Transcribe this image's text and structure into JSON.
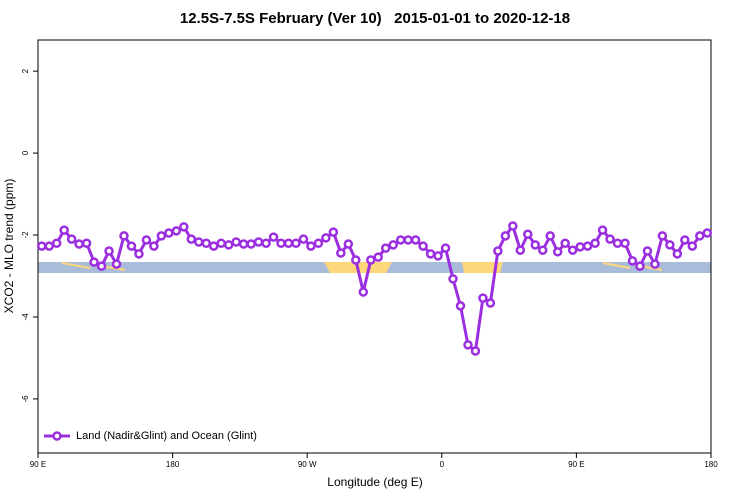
{
  "chart_data": {
    "type": "line",
    "title": "12.5S-7.5S February (Ver 10)   2015-01-01 to 2020-12-18",
    "x_label": "Longitude (deg E)",
    "y_label": "XCO2 - MLO trend (ppm)",
    "xlim": [
      90,
      540
    ],
    "ylim": [
      -7.32,
      2.76
    ],
    "xticks": [
      {
        "value": 90,
        "label": "90 E"
      },
      180,
      {
        "value": 270,
        "label": "90 W"
      },
      {
        "value": 360,
        "label": "0"
      },
      {
        "value": 450,
        "label": "90 E"
      },
      {
        "value": 540,
        "label": "180"
      }
    ],
    "yticks": [
      2,
      0,
      -2,
      -4,
      -6
    ],
    "legend": "bottom-left",
    "x": [
      92.5,
      97.5,
      102.5,
      107.5,
      112.5,
      117.5,
      122.5,
      127.5,
      132.5,
      137.5,
      142.5,
      147.5,
      152.5,
      157.5,
      162.5,
      167.5,
      172.5,
      177.5,
      182.5,
      187.5,
      192.5,
      197.5,
      202.5,
      207.5,
      212.5,
      217.5,
      222.5,
      227.5,
      232.5,
      237.5,
      242.5,
      247.5,
      252.5,
      257.5,
      262.5,
      267.5,
      272.5,
      277.5,
      282.5,
      287.5,
      292.5,
      297.5,
      302.5,
      307.5,
      312.5,
      317.5,
      322.5,
      327.5,
      332.5,
      337.5,
      342.5,
      347.5,
      352.5,
      357.5,
      362.5,
      367.5,
      372.5,
      377.5,
      382.5,
      387.5,
      392.5,
      397.5,
      402.5,
      407.5,
      412.5,
      417.5,
      422.5,
      427.5,
      432.5,
      437.5,
      442.5,
      447.5,
      452.5,
      457.5,
      462.5,
      467.5,
      472.5,
      477.5,
      482.5,
      487.5,
      492.5,
      497.5,
      502.5,
      507.5,
      512.5,
      517.5,
      522.5,
      527.5,
      532.5,
      537.5
    ],
    "series": [
      {
        "name": "Land (Nadir&Glint) and Ocean (Glint)",
        "color": "#9b2fe0",
        "values": [
          -2.27,
          -2.27,
          -2.2,
          -1.88,
          -2.1,
          -2.22,
          -2.2,
          -2.66,
          -2.76,
          -2.39,
          -2.71,
          -2.02,
          -2.27,
          -2.46,
          -2.12,
          -2.27,
          -2.02,
          -1.95,
          -1.9,
          -1.8,
          -2.1,
          -2.17,
          -2.2,
          -2.27,
          -2.2,
          -2.24,
          -2.17,
          -2.22,
          -2.22,
          -2.17,
          -2.2,
          -2.05,
          -2.2,
          -2.2,
          -2.2,
          -2.1,
          -2.27,
          -2.2,
          -2.07,
          -1.93,
          -2.44,
          -2.22,
          -2.61,
          -3.39,
          -2.61,
          -2.54,
          -2.32,
          -2.24,
          -2.12,
          -2.12,
          -2.12,
          -2.27,
          -2.46,
          -2.51,
          -2.32,
          -3.07,
          -3.73,
          -4.68,
          -4.83,
          -3.54,
          -3.66,
          -2.39,
          -2.02,
          -1.78,
          -2.37,
          -1.98,
          -2.24,
          -2.37,
          -2.02,
          -2.41,
          -2.2,
          -2.37,
          -2.29,
          -2.27,
          -2.2,
          -1.88,
          -2.1,
          -2.2,
          -2.2,
          -2.63,
          -2.76,
          -2.39,
          -2.71,
          -2.02,
          -2.24,
          -2.46,
          -2.12,
          -2.27,
          -2.02,
          -1.95
        ]
      }
    ]
  }
}
